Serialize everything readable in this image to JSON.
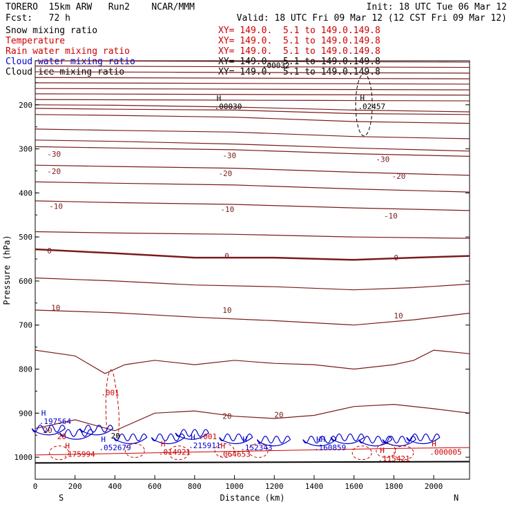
{
  "header": {
    "model": "TORERO  15km ARW   Run2    NCAR/MMM",
    "init": "Init: 18 UTC Tue 06 Mar 12",
    "fcst": "Fcst:   72 h",
    "valid": "Valid: 18 UTC Fri 09 Mar 12 (12 CST Fri 09 Mar 12)"
  },
  "legend": [
    {
      "name": "Snow mixing ratio",
      "color": "#000000",
      "xy": "XY= 149.0.  5.1 to 149.0.149.8"
    },
    {
      "name": "Temperature",
      "color": "#cc0000",
      "xy": "XY= 149.0.  5.1 to 149.0.149.8"
    },
    {
      "name": "Rain water mixing ratio",
      "color": "#cc0000",
      "xy": "XY= 149.0.  5.1 to 149.0.149.8"
    },
    {
      "name": "Cloud water mixing ratio",
      "color": "#0000cc",
      "xy": "XY= 149.0.  5.1 to 149.0.149.8"
    },
    {
      "name": "Cloud ice mixing ratio",
      "color": "#000000",
      "xy": "XY= 149.0.  5.1 to 149.0.149.8"
    }
  ],
  "chart_data": {
    "type": "line",
    "title": "",
    "xlabel": "Distance (km)",
    "ylabel": "Pressure (hPa)",
    "xlim": [
      0,
      2180
    ],
    "ylim": [
      1050,
      100
    ],
    "x_ticks": [
      0,
      200,
      400,
      600,
      800,
      1000,
      1200,
      1400,
      1600,
      1800,
      2000
    ],
    "y_ticks": [
      200,
      300,
      400,
      500,
      600,
      700,
      800,
      900,
      1000
    ],
    "x_end_labels": {
      "left": "S",
      "right": "N"
    },
    "grid": false,
    "temperature_series": [
      {
        "name": "-30",
        "points": [
          [
            0,
            200
          ],
          [
            400,
            201
          ],
          [
            1000,
            205
          ],
          [
            1600,
            212
          ],
          [
            2180,
            216
          ]
        ]
      },
      {
        "name": "-30",
        "points": [
          [
            0,
            208
          ],
          [
            400,
            210
          ],
          [
            1000,
            212
          ],
          [
            1600,
            220
          ],
          [
            2180,
            222
          ]
        ]
      },
      {
        "name": "-30",
        "points": [
          [
            0,
            222
          ],
          [
            400,
            224
          ],
          [
            1000,
            228
          ],
          [
            1600,
            238
          ],
          [
            2180,
            242
          ]
        ]
      },
      {
        "name": "-30",
        "points": [
          [
            0,
            255
          ],
          [
            400,
            258
          ],
          [
            1000,
            262
          ],
          [
            1600,
            272
          ],
          [
            2180,
            277
          ]
        ]
      },
      {
        "name": "-30",
        "points": [
          [
            0,
            280
          ],
          [
            400,
            283
          ],
          [
            1000,
            289
          ],
          [
            1600,
            298
          ],
          [
            2180,
            305
          ]
        ]
      },
      {
        "name": "-30",
        "points": [
          [
            0,
            295
          ],
          [
            400,
            298
          ],
          [
            1000,
            302
          ],
          [
            1600,
            311
          ],
          [
            2180,
            317
          ]
        ]
      },
      {
        "name": "-20",
        "points": [
          [
            0,
            337
          ],
          [
            400,
            340
          ],
          [
            1000,
            344
          ],
          [
            1600,
            353
          ],
          [
            2180,
            360
          ]
        ]
      },
      {
        "name": "-20",
        "points": [
          [
            0,
            375
          ],
          [
            400,
            378
          ],
          [
            1000,
            382
          ],
          [
            1600,
            391
          ],
          [
            2180,
            398
          ]
        ]
      },
      {
        "name": "-10",
        "points": [
          [
            0,
            418
          ],
          [
            400,
            422
          ],
          [
            1000,
            426
          ],
          [
            1600,
            434
          ],
          [
            2180,
            440
          ]
        ]
      },
      {
        "name": "-10",
        "points": [
          [
            0,
            488
          ],
          [
            400,
            491
          ],
          [
            1000,
            494
          ],
          [
            1600,
            500
          ],
          [
            2180,
            503
          ]
        ]
      },
      {
        "name": "0",
        "points": [
          [
            0,
            528
          ],
          [
            400,
            537
          ],
          [
            800,
            547
          ],
          [
            1200,
            547
          ],
          [
            1600,
            552
          ],
          [
            1900,
            547
          ],
          [
            2180,
            543
          ]
        ]
      },
      {
        "name": "10",
        "points": [
          [
            0,
            593
          ],
          [
            400,
            600
          ],
          [
            800,
            609
          ],
          [
            1200,
            613
          ],
          [
            1600,
            620
          ],
          [
            1900,
            615
          ],
          [
            2180,
            607
          ]
        ]
      },
      {
        "name": "10",
        "points": [
          [
            0,
            666
          ],
          [
            400,
            672
          ],
          [
            800,
            682
          ],
          [
            1200,
            690
          ],
          [
            1600,
            700
          ],
          [
            1900,
            688
          ],
          [
            2180,
            673
          ]
        ]
      },
      {
        "name": "20",
        "points": [
          [
            0,
            757
          ],
          [
            200,
            770
          ],
          [
            350,
            810
          ],
          [
            450,
            790
          ],
          [
            600,
            780
          ],
          [
            800,
            790
          ],
          [
            1000,
            780
          ],
          [
            1200,
            787
          ],
          [
            1400,
            790
          ],
          [
            1600,
            800
          ],
          [
            1800,
            790
          ],
          [
            1900,
            780
          ],
          [
            2000,
            757
          ],
          [
            2180,
            765
          ]
        ]
      },
      {
        "name": "20",
        "points": [
          [
            0,
            935
          ],
          [
            200,
            915
          ],
          [
            400,
            940
          ],
          [
            600,
            900
          ],
          [
            800,
            895
          ],
          [
            1000,
            907
          ],
          [
            1200,
            912
          ],
          [
            1400,
            905
          ],
          [
            1600,
            885
          ],
          [
            1800,
            880
          ],
          [
            2000,
            890
          ],
          [
            2180,
            900
          ]
        ]
      }
    ],
    "temperature_labels": [
      {
        "text": "-30",
        "x": 60,
        "p": 318
      },
      {
        "text": "-30",
        "x": 940,
        "p": 321
      },
      {
        "text": "-30",
        "x": 1710,
        "p": 330
      },
      {
        "text": "-20",
        "x": 60,
        "p": 357
      },
      {
        "text": "-20",
        "x": 920,
        "p": 362
      },
      {
        "text": "-20",
        "x": 1790,
        "p": 368
      },
      {
        "text": "-10",
        "x": 70,
        "p": 436
      },
      {
        "text": "-10",
        "x": 930,
        "p": 443
      },
      {
        "text": "-10",
        "x": 1750,
        "p": 458
      },
      {
        "text": "0",
        "x": 60,
        "p": 537
      },
      {
        "text": "0",
        "x": 950,
        "p": 549
      },
      {
        "text": "0",
        "x": 1800,
        "p": 553
      },
      {
        "text": "10",
        "x": 80,
        "p": 667
      },
      {
        "text": "10",
        "x": 940,
        "p": 672
      },
      {
        "text": "10",
        "x": 1800,
        "p": 685
      },
      {
        "text": "20",
        "x": 940,
        "p": 913
      },
      {
        "text": "20",
        "x": 1200,
        "p": 910
      },
      {
        "text": "20",
        "x": 40,
        "p": 945
      }
    ],
    "extrema": [
      {
        "type": "H",
        "value": ".00030",
        "x": 900,
        "p": 200,
        "color": "#000000"
      },
      {
        "type": "H",
        "value": ".02457",
        "x": 1620,
        "p": 200,
        "color": "#000000"
      },
      {
        "type": "",
        "value": ".00032",
        "x": 1140,
        "p": 107,
        "color": "#000000"
      },
      {
        "type": "H",
        "value": ".197564",
        "x": 20,
        "p": 915,
        "color": "#0000cc"
      },
      {
        "type": "",
        "value": ".001",
        "x": 330,
        "p": 850,
        "color": "#cc0000"
      },
      {
        "type": "",
        "value": ".001",
        "x": 820,
        "p": 950,
        "color": "#cc0000"
      },
      {
        "type": "H",
        "value": ".052679",
        "x": 320,
        "p": 975,
        "color": "#0000cc"
      },
      {
        "type": "H",
        "value": ".215911",
        "x": 770,
        "p": 970,
        "color": "#0000cc"
      },
      {
        "type": "H",
        "value": ".152343",
        "x": 1030,
        "p": 975,
        "color": "#0000cc"
      },
      {
        "type": "HH",
        "value": ".160859",
        "x": 1400,
        "p": 975,
        "color": "#0000cc"
      },
      {
        "type": "H",
        "value": ".175994",
        "x": 140,
        "p": 990,
        "color": "#cc0000"
      },
      {
        "type": "H",
        "value": ".014921",
        "x": 620,
        "p": 985,
        "color": "#cc0000"
      },
      {
        "type": "H",
        "value": ".064653",
        "x": 920,
        "p": 990,
        "color": "#cc0000"
      },
      {
        "type": "H",
        "value": ".115421",
        "x": 1720,
        "p": 1000,
        "color": "#cc0000"
      },
      {
        "type": "H",
        "value": ".000005",
        "x": 1980,
        "p": 985,
        "color": "#cc0000"
      },
      {
        "type": "",
        "value": "20",
        "x": 110,
        "p": 950,
        "color": "#cc0000"
      },
      {
        "type": "",
        "value": "20",
        "x": 380,
        "p": 948,
        "color": "#000000"
      }
    ]
  }
}
